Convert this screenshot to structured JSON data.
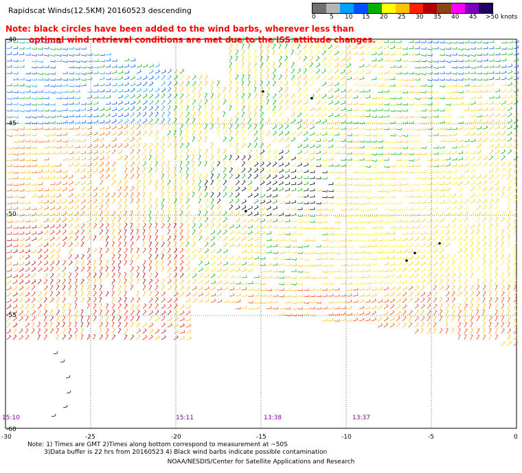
{
  "title": "Rapidscat Winds(12.5KM) 20160523 descending",
  "note": {
    "line1": "Note: black circles have been added to the wind barbs, wherever less than",
    "line2": "optimal wind retrieval conditions are met due to the ISS attitude changes."
  },
  "colorbar": {
    "labels": [
      "0",
      "5",
      "10",
      "15",
      "20",
      "25",
      "30",
      "35",
      "40",
      "45",
      ">50 knots"
    ],
    "colors": [
      "#707070",
      "#b4b4b4",
      "#00a0ff",
      "#0050ff",
      "#00b000",
      "#ffff00",
      "#ffc000",
      "#ff2000",
      "#b00000",
      "#8b4513",
      "#ff00ff",
      "#8000c0",
      "#200060"
    ]
  },
  "map": {
    "lat_labels": [
      "-40",
      "-45",
      "-50",
      "-55",
      "-60"
    ],
    "lon_labels": [
      "-30",
      "-25",
      "-20",
      "-15",
      "-10",
      "-5",
      "0"
    ],
    "time_labels": [
      "15:10",
      "15:11",
      "13:38",
      "13:37"
    ]
  },
  "footer": {
    "line1": "Note: 1) Times are GMT 2)Times along bottom correspond to measurement at ~50S",
    "line2": "3)Data buffer is 22 hrs from 20160523 4) Black wind barbs indicate possible contamination",
    "credit": "NOAA/NESDIS/Center for Satellite Applications and Research"
  }
}
